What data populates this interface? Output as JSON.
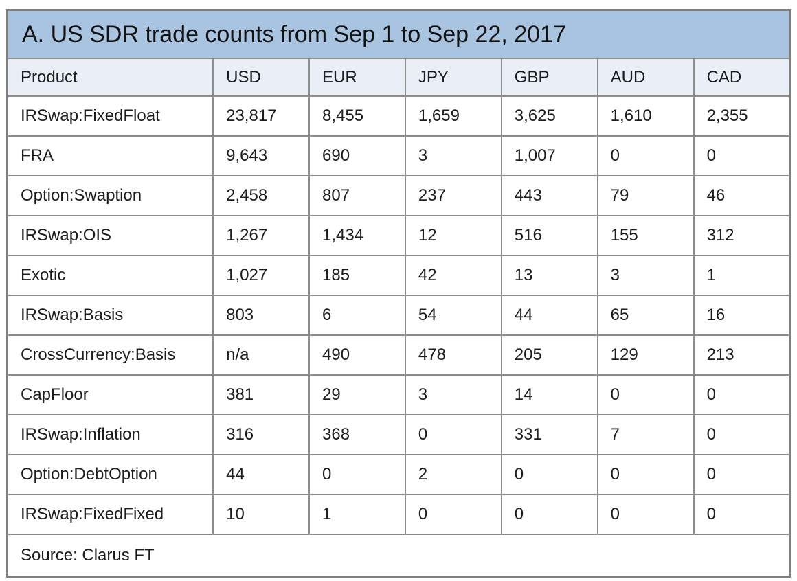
{
  "panel": {
    "title": "A. US SDR trade counts from Sep 1 to Sep 22, 2017",
    "source": "Source: Clarus FT"
  },
  "colors": {
    "title_bg": "#a9c4e1",
    "header_bg": "#e9eef7",
    "grid_border": "#8c8c8c",
    "outer_border": "#7f7f7f",
    "text": "#1d1d1d"
  },
  "chart_data": {
    "type": "table",
    "title": "A. US SDR trade counts from Sep 1 to Sep 22, 2017",
    "columns": [
      "Product",
      "USD",
      "EUR",
      "JPY",
      "GBP",
      "AUD",
      "CAD"
    ],
    "rows": [
      [
        "IRSwap:FixedFloat",
        "23,817",
        "8,455",
        "1,659",
        "3,625",
        "1,610",
        "2,355"
      ],
      [
        "FRA",
        "9,643",
        "690",
        "3",
        "1,007",
        "0",
        "0"
      ],
      [
        "Option:Swaption",
        "2,458",
        "807",
        "237",
        "443",
        "79",
        "46"
      ],
      [
        "IRSwap:OIS",
        "1,267",
        "1,434",
        "12",
        "516",
        "155",
        "312"
      ],
      [
        "Exotic",
        "1,027",
        "185",
        "42",
        "13",
        "3",
        "1"
      ],
      [
        "IRSwap:Basis",
        "803",
        "6",
        "54",
        "44",
        "65",
        "16"
      ],
      [
        "CrossCurrency:Basis",
        "n/a",
        "490",
        "478",
        "205",
        "129",
        "213"
      ],
      [
        "CapFloor",
        "381",
        "29",
        "3",
        "14",
        "0",
        "0"
      ],
      [
        "IRSwap:Inflation",
        "316",
        "368",
        "0",
        "331",
        "7",
        "0"
      ],
      [
        "Option:DebtOption",
        "44",
        "0",
        "2",
        "0",
        "0",
        "0"
      ],
      [
        "IRSwap:FixedFixed",
        "10",
        "1",
        "0",
        "0",
        "0",
        "0"
      ]
    ],
    "source": "Source: Clarus FT"
  }
}
